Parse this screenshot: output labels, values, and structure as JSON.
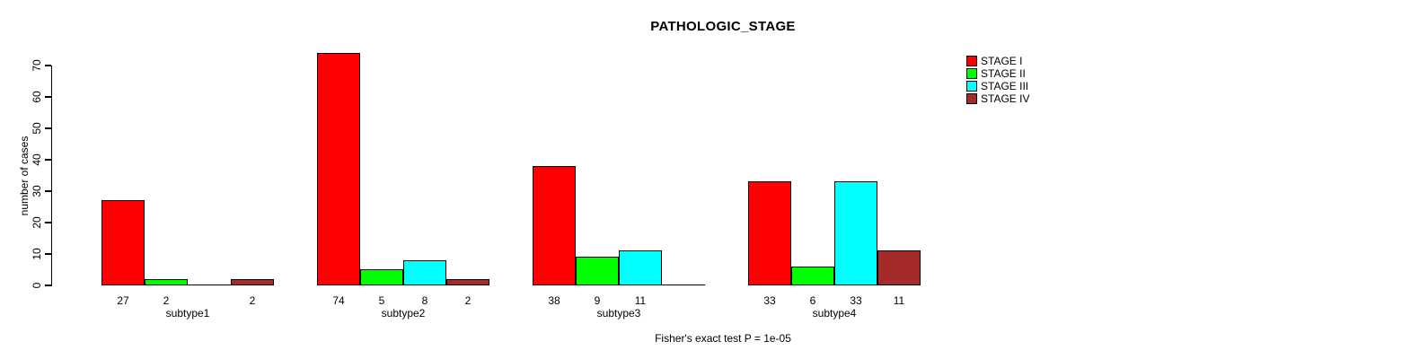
{
  "chart_data": {
    "type": "bar",
    "title": "PATHOLOGIC_STAGE",
    "xlabel": "",
    "ylabel": "number of cases",
    "caption": "Fisher's exact test P = 1e-05",
    "categories": [
      "subtype1",
      "subtype2",
      "subtype3",
      "subtype4"
    ],
    "series": [
      {
        "name": "STAGE I",
        "color": "#ff0000",
        "values": [
          27,
          74,
          38,
          33
        ]
      },
      {
        "name": "STAGE II",
        "color": "#00ff00",
        "values": [
          2,
          5,
          9,
          6
        ]
      },
      {
        "name": "STAGE III",
        "color": "#00ffff",
        "values": [
          0,
          8,
          11,
          33
        ]
      },
      {
        "name": "STAGE IV",
        "color": "#a52a2a",
        "values": [
          2,
          2,
          0,
          11
        ]
      }
    ],
    "ylim": [
      0,
      70
    ],
    "yticks": [
      0,
      10,
      20,
      30,
      40,
      50,
      60,
      70
    ],
    "grid": false,
    "legend_position": "top-right",
    "bar_labels": "value shown under each bar, hidden when zero",
    "axis_color": "#000000",
    "background_color": "#ffffff"
  }
}
